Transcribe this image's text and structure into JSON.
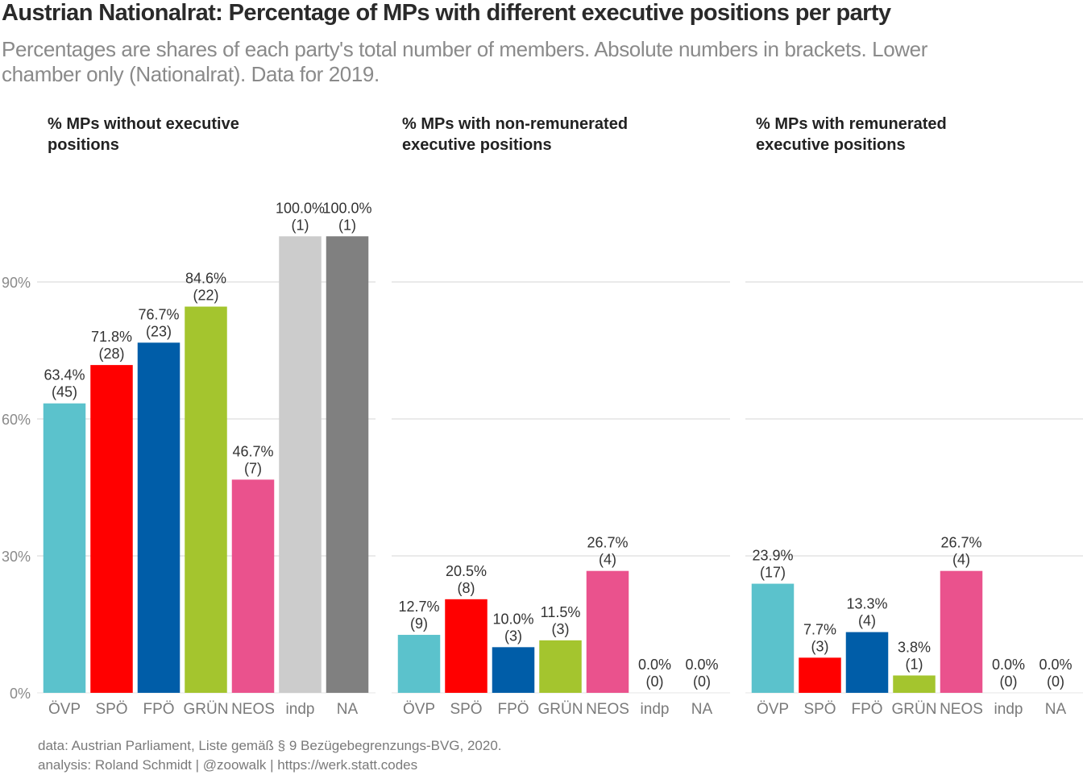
{
  "title": "Austrian Nationalrat: Percentage of MPs with different executive positions per party",
  "subtitle": "Percentages are shares of each party's total number of members. Absolute numbers in brackets. Lower chamber only (Nationalrat). Data for 2019.",
  "caption": {
    "line1": "data: Austrian Parliament, Liste gemäß § 9 Bezügebegrenzungs-BVG, 2020.",
    "line2": "analysis: Roland Schmidt | @zoowalk | https://werk.statt.codes"
  },
  "chart_data": {
    "type": "bar",
    "y_axis": {
      "ticks": [
        0,
        30,
        60,
        90
      ],
      "tick_labels": [
        "0%",
        "30%",
        "60%",
        "90%"
      ],
      "ylim": [
        0,
        100
      ]
    },
    "grid": "horizontal",
    "categories": [
      "ÖVP",
      "SPÖ",
      "FPÖ",
      "GRÜN",
      "NEOS",
      "indp",
      "NA"
    ],
    "colors": [
      "#5BC2CC",
      "#FF0000",
      "#005DA8",
      "#A4C52E",
      "#EA528D",
      "#CCCCCC",
      "#808080"
    ],
    "panels": [
      {
        "title_lines": [
          "% MPs without executive",
          "positions"
        ],
        "values": [
          63.4,
          71.8,
          76.7,
          84.6,
          46.7,
          100.0,
          100.0
        ],
        "counts": [
          45,
          28,
          23,
          22,
          7,
          1,
          1
        ],
        "value_labels": [
          "63.4%",
          "71.8%",
          "76.7%",
          "84.6%",
          "46.7%",
          "100.0%",
          "100.0%"
        ],
        "count_labels": [
          "(45)",
          "(28)",
          "(23)",
          "(22)",
          "(7)",
          "(1)",
          "(1)"
        ]
      },
      {
        "title_lines": [
          "% MPs with non-remunerated",
          "executive positions"
        ],
        "values": [
          12.7,
          20.5,
          10.0,
          11.5,
          26.7,
          0.0,
          0.0
        ],
        "counts": [
          9,
          8,
          3,
          3,
          4,
          0,
          0
        ],
        "value_labels": [
          "12.7%",
          "20.5%",
          "10.0%",
          "11.5%",
          "26.7%",
          "0.0%",
          "0.0%"
        ],
        "count_labels": [
          "(9)",
          "(8)",
          "(3)",
          "(3)",
          "(4)",
          "(0)",
          "(0)"
        ]
      },
      {
        "title_lines": [
          "% MPs with remunerated",
          "executive positions"
        ],
        "values": [
          23.9,
          7.7,
          13.3,
          3.8,
          26.7,
          0.0,
          0.0
        ],
        "counts": [
          17,
          3,
          4,
          1,
          4,
          0,
          0
        ],
        "value_labels": [
          "23.9%",
          "7.7%",
          "13.3%",
          "3.8%",
          "26.7%",
          "0.0%",
          "0.0%"
        ],
        "count_labels": [
          "(17)",
          "(3)",
          "(4)",
          "(1)",
          "(4)",
          "(0)",
          "(0)"
        ]
      }
    ]
  }
}
